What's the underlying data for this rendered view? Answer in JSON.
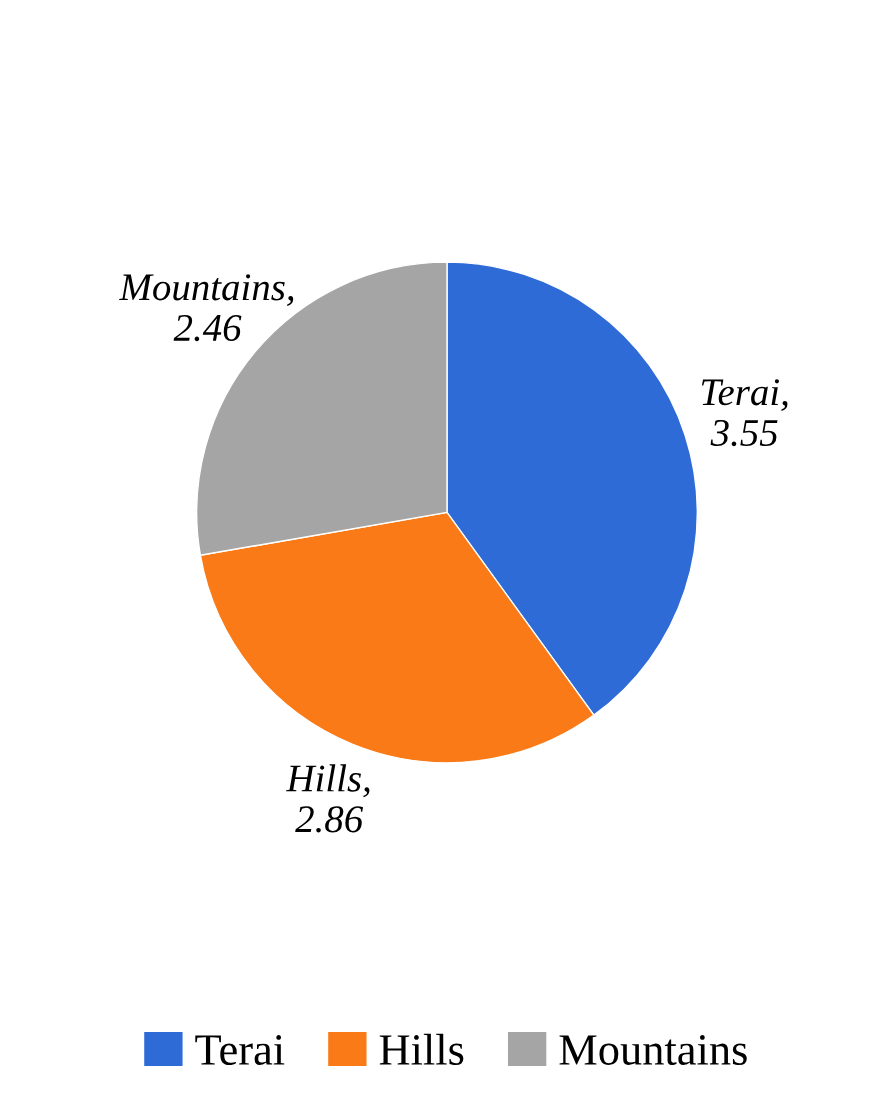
{
  "chart_data": {
    "type": "pie",
    "categories": [
      "Terai",
      "Hills",
      "Mountains"
    ],
    "values": [
      3.55,
      2.86,
      2.46
    ],
    "colors": [
      "#2e6bd6",
      "#f97a16",
      "#a5a5a5"
    ],
    "value_labels": [
      "Terai, 3.55",
      "Hills, 2.86",
      "Mountains, 2.46"
    ],
    "legend": "bottom"
  }
}
